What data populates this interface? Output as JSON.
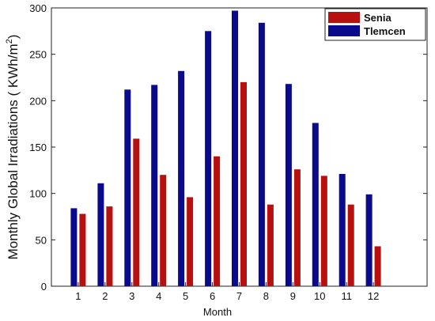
{
  "chart_data": {
    "type": "bar",
    "xlabel": "Month",
    "ylabel_main": "Monthly Global Irradiations ( KWh/m",
    "ylabel_sup": "2",
    "ylabel_end": ")",
    "categories": [
      "1",
      "2",
      "3",
      "4",
      "5",
      "6",
      "7",
      "8",
      "9",
      "10",
      "11",
      "12"
    ],
    "series": [
      {
        "name": "Tlemcen",
        "color": "#0a0a8c",
        "values": [
          84,
          111,
          212,
          217,
          232,
          275,
          297,
          284,
          218,
          176,
          121,
          99
        ]
      },
      {
        "name": "Senia",
        "color": "#b8100e",
        "values": [
          78,
          86,
          159,
          120,
          96,
          140,
          220,
          88,
          126,
          119,
          88,
          43
        ]
      }
    ],
    "legend_order": [
      "Senia",
      "Tlemcen"
    ],
    "ylim": [
      0,
      300
    ],
    "xlim": [
      0,
      14
    ],
    "yticks": [
      0,
      50,
      100,
      150,
      200,
      250,
      300
    ],
    "grid": false,
    "legend": "top-right"
  }
}
